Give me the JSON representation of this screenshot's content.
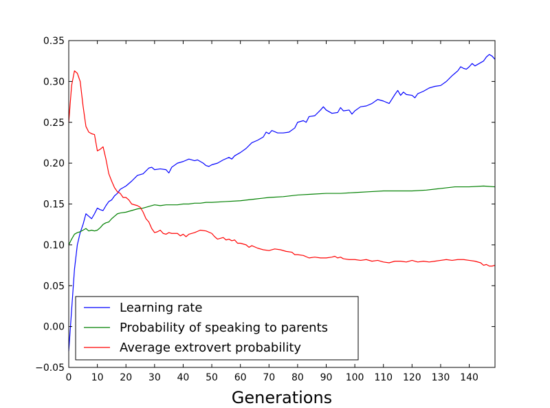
{
  "chart_data": {
    "type": "line",
    "title": "",
    "xlabel": "Generations",
    "ylabel": "",
    "xlim": [
      0,
      149
    ],
    "ylim": [
      -0.05,
      0.35
    ],
    "grid": false,
    "legend_position": "lower-left",
    "x_ticks": [
      "0",
      "10",
      "20",
      "30",
      "40",
      "50",
      "60",
      "70",
      "80",
      "90",
      "100",
      "110",
      "120",
      "130",
      "140"
    ],
    "y_ticks": [
      "−0.05",
      "0.00",
      "0.05",
      "0.10",
      "0.15",
      "0.20",
      "0.25",
      "0.30",
      "0.35"
    ],
    "x_tick_values": [
      0,
      10,
      20,
      30,
      40,
      50,
      60,
      70,
      80,
      90,
      100,
      110,
      120,
      130,
      140
    ],
    "y_tick_values": [
      -0.05,
      0,
      0.05,
      0.1,
      0.15,
      0.2,
      0.25,
      0.3,
      0.35
    ],
    "series": [
      {
        "name": "Learning rate",
        "color": "#0000ff",
        "points": [
          [
            0,
            -0.03
          ],
          [
            1,
            0.02
          ],
          [
            2,
            0.07
          ],
          [
            3,
            0.1
          ],
          [
            4,
            0.115
          ],
          [
            5,
            0.125
          ],
          [
            6,
            0.138
          ],
          [
            7,
            0.135
          ],
          [
            8,
            0.132
          ],
          [
            9,
            0.138
          ],
          [
            10,
            0.145
          ],
          [
            11,
            0.143
          ],
          [
            12,
            0.142
          ],
          [
            13,
            0.148
          ],
          [
            14,
            0.153
          ],
          [
            15,
            0.155
          ],
          [
            16,
            0.16
          ],
          [
            17,
            0.163
          ],
          [
            18,
            0.168
          ],
          [
            19,
            0.17
          ],
          [
            20,
            0.172
          ],
          [
            22,
            0.178
          ],
          [
            24,
            0.185
          ],
          [
            26,
            0.187
          ],
          [
            28,
            0.194
          ],
          [
            29,
            0.195
          ],
          [
            30,
            0.192
          ],
          [
            32,
            0.193
          ],
          [
            34,
            0.192
          ],
          [
            35,
            0.188
          ],
          [
            36,
            0.195
          ],
          [
            38,
            0.2
          ],
          [
            40,
            0.202
          ],
          [
            42,
            0.205
          ],
          [
            44,
            0.203
          ],
          [
            45,
            0.204
          ],
          [
            47,
            0.2
          ],
          [
            48,
            0.197
          ],
          [
            49,
            0.196
          ],
          [
            50,
            0.198
          ],
          [
            52,
            0.2
          ],
          [
            54,
            0.204
          ],
          [
            56,
            0.207
          ],
          [
            57,
            0.205
          ],
          [
            58,
            0.209
          ],
          [
            60,
            0.213
          ],
          [
            62,
            0.218
          ],
          [
            64,
            0.225
          ],
          [
            66,
            0.228
          ],
          [
            68,
            0.232
          ],
          [
            69,
            0.238
          ],
          [
            70,
            0.236
          ],
          [
            71,
            0.24
          ],
          [
            73,
            0.237
          ],
          [
            75,
            0.237
          ],
          [
            77,
            0.238
          ],
          [
            79,
            0.243
          ],
          [
            80,
            0.25
          ],
          [
            82,
            0.252
          ],
          [
            83,
            0.25
          ],
          [
            84,
            0.257
          ],
          [
            86,
            0.258
          ],
          [
            88,
            0.265
          ],
          [
            89,
            0.269
          ],
          [
            90,
            0.265
          ],
          [
            92,
            0.261
          ],
          [
            94,
            0.262
          ],
          [
            95,
            0.268
          ],
          [
            96,
            0.264
          ],
          [
            98,
            0.265
          ],
          [
            99,
            0.26
          ],
          [
            100,
            0.264
          ],
          [
            102,
            0.269
          ],
          [
            104,
            0.27
          ],
          [
            106,
            0.273
          ],
          [
            108,
            0.278
          ],
          [
            110,
            0.276
          ],
          [
            112,
            0.273
          ],
          [
            114,
            0.284
          ],
          [
            115,
            0.289
          ],
          [
            116,
            0.283
          ],
          [
            117,
            0.287
          ],
          [
            118,
            0.284
          ],
          [
            120,
            0.283
          ],
          [
            121,
            0.28
          ],
          [
            122,
            0.285
          ],
          [
            124,
            0.288
          ],
          [
            126,
            0.292
          ],
          [
            128,
            0.294
          ],
          [
            130,
            0.295
          ],
          [
            132,
            0.3
          ],
          [
            134,
            0.307
          ],
          [
            135,
            0.31
          ],
          [
            136,
            0.313
          ],
          [
            137,
            0.318
          ],
          [
            138,
            0.316
          ],
          [
            139,
            0.315
          ],
          [
            140,
            0.318
          ],
          [
            141,
            0.322
          ],
          [
            142,
            0.319
          ],
          [
            143,
            0.321
          ],
          [
            145,
            0.325
          ],
          [
            146,
            0.33
          ],
          [
            147,
            0.333
          ],
          [
            148,
            0.331
          ],
          [
            149,
            0.327
          ]
        ]
      },
      {
        "name": "Probability of speaking to parents",
        "color": "#008000",
        "points": [
          [
            0,
            0.1
          ],
          [
            1,
            0.107
          ],
          [
            2,
            0.113
          ],
          [
            3,
            0.115
          ],
          [
            4,
            0.116
          ],
          [
            5,
            0.118
          ],
          [
            6,
            0.12
          ],
          [
            7,
            0.117
          ],
          [
            8,
            0.118
          ],
          [
            9,
            0.117
          ],
          [
            10,
            0.118
          ],
          [
            11,
            0.121
          ],
          [
            12,
            0.125
          ],
          [
            13,
            0.127
          ],
          [
            14,
            0.128
          ],
          [
            15,
            0.132
          ],
          [
            16,
            0.135
          ],
          [
            17,
            0.138
          ],
          [
            18,
            0.139
          ],
          [
            20,
            0.14
          ],
          [
            22,
            0.142
          ],
          [
            24,
            0.144
          ],
          [
            26,
            0.145
          ],
          [
            28,
            0.147
          ],
          [
            30,
            0.149
          ],
          [
            32,
            0.148
          ],
          [
            34,
            0.149
          ],
          [
            36,
            0.149
          ],
          [
            38,
            0.149
          ],
          [
            40,
            0.15
          ],
          [
            42,
            0.15
          ],
          [
            44,
            0.151
          ],
          [
            46,
            0.151
          ],
          [
            48,
            0.152
          ],
          [
            50,
            0.152
          ],
          [
            55,
            0.153
          ],
          [
            60,
            0.154
          ],
          [
            65,
            0.156
          ],
          [
            70,
            0.158
          ],
          [
            75,
            0.159
          ],
          [
            80,
            0.161
          ],
          [
            85,
            0.162
          ],
          [
            90,
            0.163
          ],
          [
            95,
            0.163
          ],
          [
            100,
            0.164
          ],
          [
            105,
            0.165
          ],
          [
            110,
            0.166
          ],
          [
            115,
            0.166
          ],
          [
            120,
            0.166
          ],
          [
            125,
            0.167
          ],
          [
            130,
            0.169
          ],
          [
            135,
            0.171
          ],
          [
            140,
            0.171
          ],
          [
            145,
            0.172
          ],
          [
            149,
            0.171
          ]
        ]
      },
      {
        "name": "Average extrovert probability",
        "color": "#ff0000",
        "points": [
          [
            0,
            0.25
          ],
          [
            1,
            0.295
          ],
          [
            2,
            0.313
          ],
          [
            3,
            0.31
          ],
          [
            4,
            0.3
          ],
          [
            5,
            0.27
          ],
          [
            6,
            0.245
          ],
          [
            7,
            0.238
          ],
          [
            8,
            0.236
          ],
          [
            9,
            0.235
          ],
          [
            10,
            0.215
          ],
          [
            11,
            0.217
          ],
          [
            12,
            0.22
          ],
          [
            13,
            0.205
          ],
          [
            14,
            0.187
          ],
          [
            15,
            0.178
          ],
          [
            16,
            0.17
          ],
          [
            17,
            0.165
          ],
          [
            18,
            0.163
          ],
          [
            19,
            0.158
          ],
          [
            20,
            0.158
          ],
          [
            21,
            0.155
          ],
          [
            22,
            0.15
          ],
          [
            24,
            0.148
          ],
          [
            25,
            0.146
          ],
          [
            26,
            0.14
          ],
          [
            27,
            0.132
          ],
          [
            28,
            0.128
          ],
          [
            29,
            0.12
          ],
          [
            30,
            0.115
          ],
          [
            31,
            0.116
          ],
          [
            32,
            0.118
          ],
          [
            33,
            0.114
          ],
          [
            34,
            0.113
          ],
          [
            35,
            0.115
          ],
          [
            36,
            0.114
          ],
          [
            37,
            0.114
          ],
          [
            38,
            0.114
          ],
          [
            39,
            0.111
          ],
          [
            40,
            0.113
          ],
          [
            41,
            0.11
          ],
          [
            42,
            0.113
          ],
          [
            44,
            0.115
          ],
          [
            46,
            0.118
          ],
          [
            48,
            0.117
          ],
          [
            50,
            0.114
          ],
          [
            51,
            0.11
          ],
          [
            52,
            0.107
          ],
          [
            54,
            0.109
          ],
          [
            55,
            0.106
          ],
          [
            56,
            0.107
          ],
          [
            57,
            0.105
          ],
          [
            58,
            0.106
          ],
          [
            59,
            0.102
          ],
          [
            60,
            0.102
          ],
          [
            62,
            0.1
          ],
          [
            63,
            0.097
          ],
          [
            64,
            0.099
          ],
          [
            66,
            0.096
          ],
          [
            68,
            0.094
          ],
          [
            70,
            0.093
          ],
          [
            72,
            0.095
          ],
          [
            74,
            0.094
          ],
          [
            76,
            0.092
          ],
          [
            78,
            0.091
          ],
          [
            79,
            0.088
          ],
          [
            80,
            0.088
          ],
          [
            82,
            0.087
          ],
          [
            84,
            0.084
          ],
          [
            86,
            0.085
          ],
          [
            88,
            0.084
          ],
          [
            90,
            0.084
          ],
          [
            92,
            0.085
          ],
          [
            93,
            0.086
          ],
          [
            94,
            0.084
          ],
          [
            95,
            0.085
          ],
          [
            96,
            0.083
          ],
          [
            98,
            0.082
          ],
          [
            100,
            0.082
          ],
          [
            102,
            0.081
          ],
          [
            104,
            0.082
          ],
          [
            106,
            0.08
          ],
          [
            108,
            0.081
          ],
          [
            110,
            0.079
          ],
          [
            112,
            0.078
          ],
          [
            114,
            0.08
          ],
          [
            116,
            0.08
          ],
          [
            118,
            0.079
          ],
          [
            120,
            0.081
          ],
          [
            122,
            0.079
          ],
          [
            124,
            0.08
          ],
          [
            126,
            0.079
          ],
          [
            128,
            0.08
          ],
          [
            130,
            0.081
          ],
          [
            132,
            0.082
          ],
          [
            134,
            0.081
          ],
          [
            136,
            0.082
          ],
          [
            138,
            0.082
          ],
          [
            140,
            0.081
          ],
          [
            142,
            0.08
          ],
          [
            144,
            0.078
          ],
          [
            145,
            0.075
          ],
          [
            146,
            0.076
          ],
          [
            147,
            0.074
          ],
          [
            148,
            0.074
          ],
          [
            149,
            0.075
          ]
        ]
      }
    ]
  }
}
